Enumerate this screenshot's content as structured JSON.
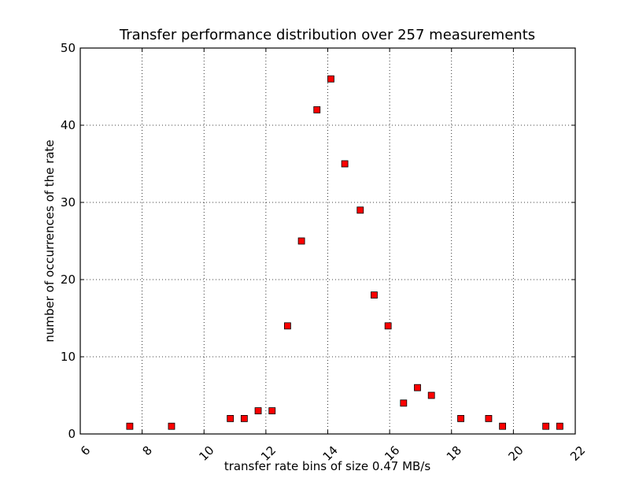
{
  "chart_data": {
    "type": "scatter",
    "title": "Transfer performance distribution over 257 measurements",
    "xlabel": "transfer rate bins of size 0.47 MB/s",
    "ylabel": "number of occurrences of the rate",
    "xlim": [
      6,
      22
    ],
    "ylim": [
      0,
      50
    ],
    "xticks": [
      6,
      8,
      10,
      12,
      14,
      16,
      18,
      20,
      22
    ],
    "yticks": [
      0,
      10,
      20,
      30,
      40,
      50
    ],
    "grid": true,
    "marker": "square",
    "marker_color": "#ff0000",
    "series": [
      {
        "x": [
          7.6,
          8.95,
          10.85,
          11.3,
          11.75,
          12.2,
          12.7,
          13.15,
          13.65,
          14.1,
          14.55,
          15.05,
          15.5,
          15.95,
          16.45,
          16.9,
          17.35,
          18.3,
          19.2,
          19.65,
          21.05,
          21.5
        ],
        "y": [
          1,
          1,
          2,
          2,
          3,
          3,
          14,
          25,
          42,
          46,
          35,
          29,
          18,
          14,
          4,
          6,
          5,
          2,
          2,
          1,
          1,
          1
        ]
      }
    ]
  }
}
